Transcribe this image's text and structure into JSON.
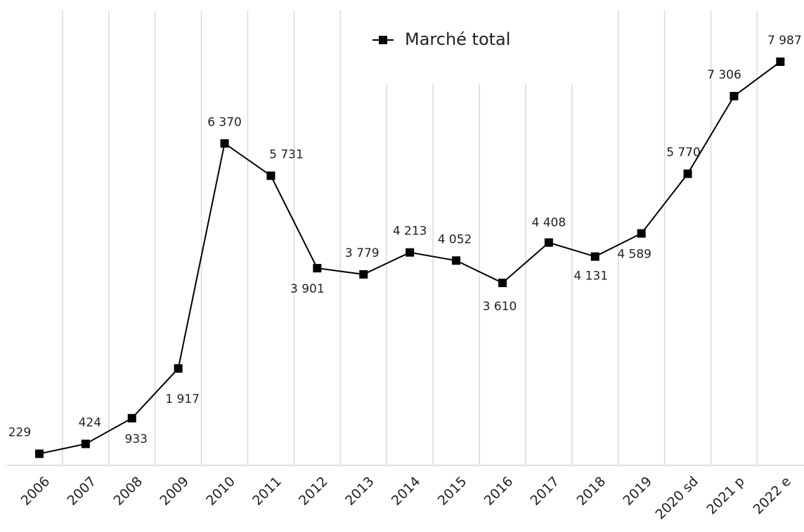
{
  "chart_data": {
    "type": "line",
    "categories": [
      "2006",
      "2007",
      "2008",
      "2009",
      "2010",
      "2011",
      "2012",
      "2013",
      "2014",
      "2015",
      "2016",
      "2017",
      "2018",
      "2019",
      "2020 sd",
      "2021 p",
      "2022 e"
    ],
    "series": [
      {
        "name": "Marché total",
        "color": "#000000",
        "values": [
          229,
          424,
          933,
          1917,
          6370,
          5731,
          3901,
          3779,
          4213,
          4052,
          3610,
          4408,
          4131,
          4589,
          5770,
          7306,
          7987
        ],
        "value_labels": [
          "229",
          "424",
          "933",
          "1 917",
          "6 370",
          "5 731",
          "3 901",
          "3 779",
          "4 213",
          "4 052",
          "3 610",
          "4 408",
          "4 131",
          "4 589",
          "5 770",
          "7 306",
          "7 987"
        ]
      }
    ],
    "ylim": [
      0,
      9000
    ]
  }
}
